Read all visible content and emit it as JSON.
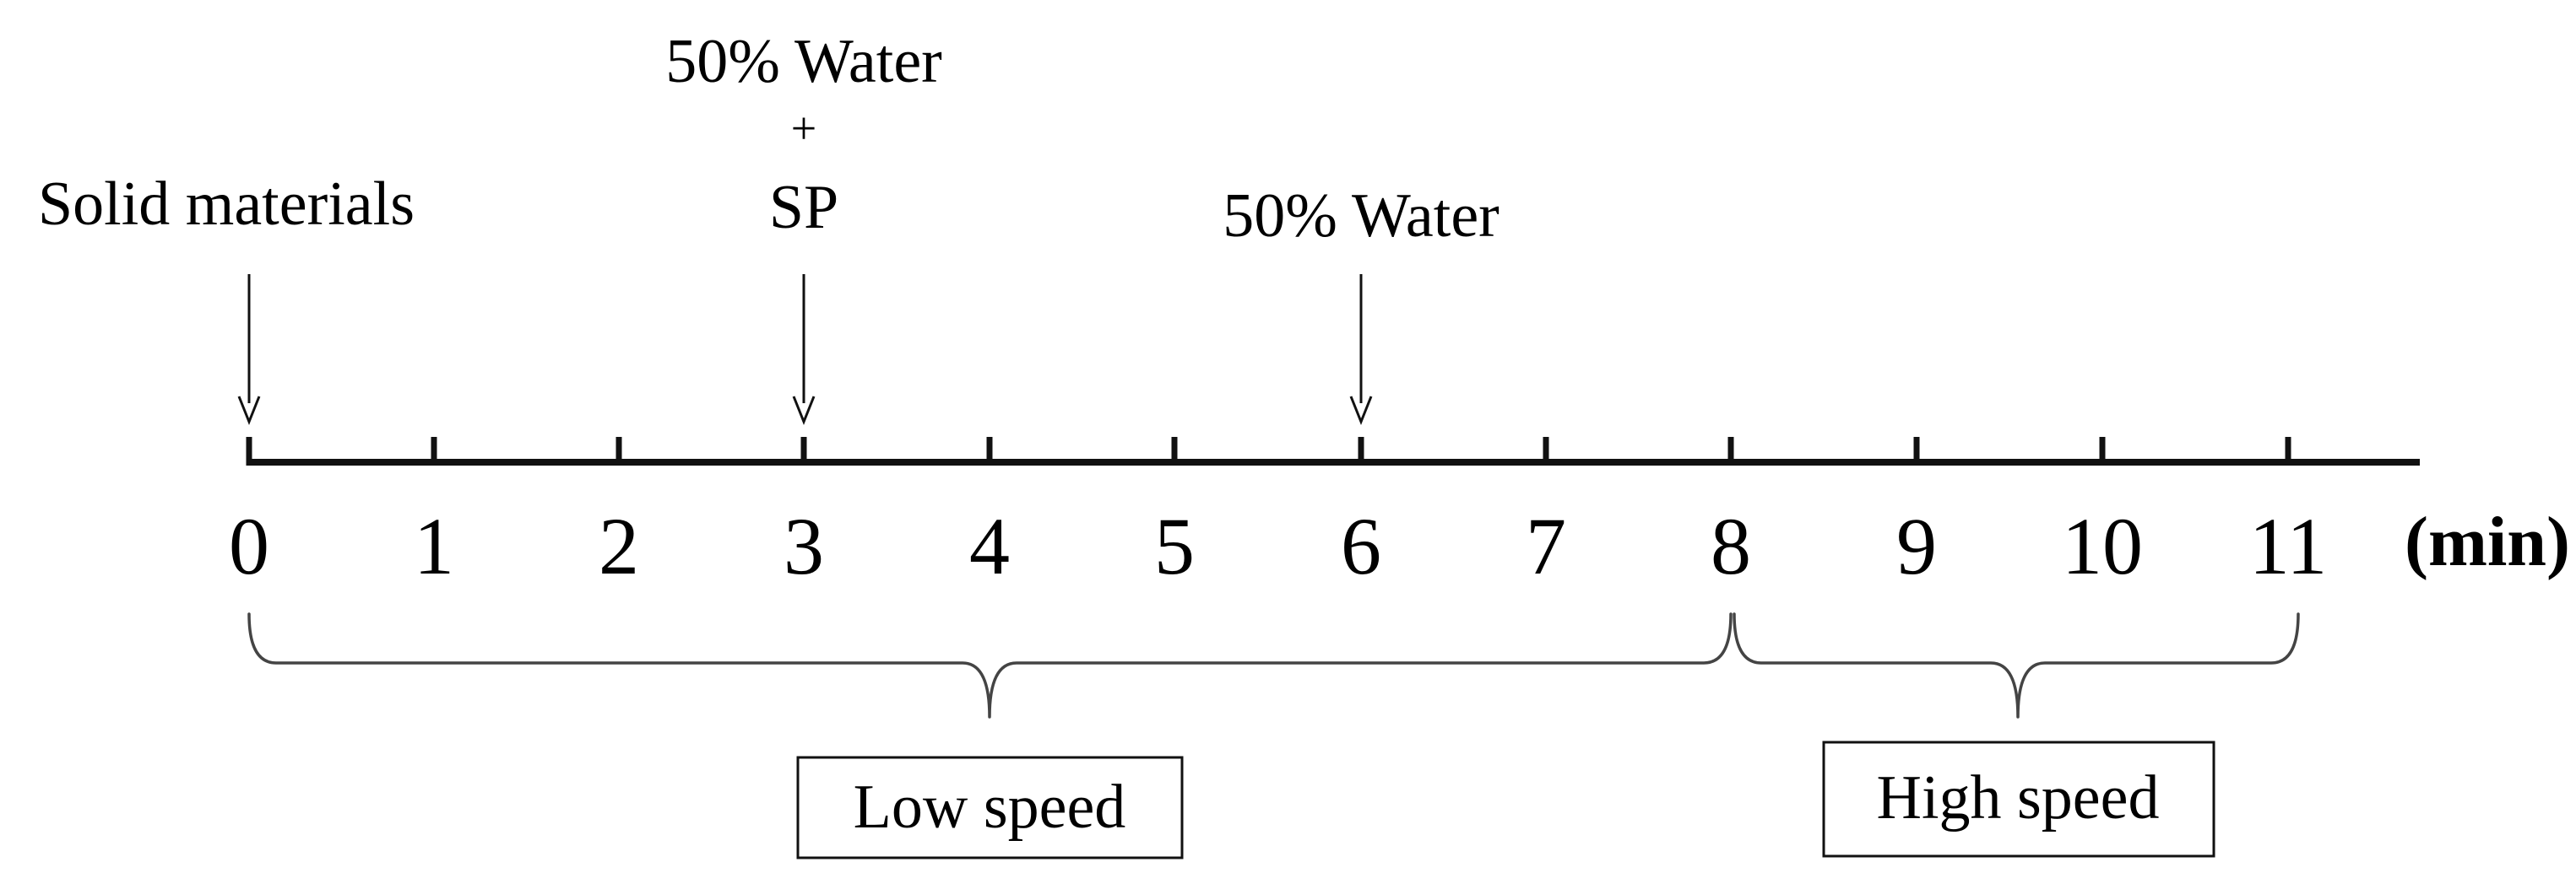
{
  "timeline": {
    "ticks": [
      "0",
      "1",
      "2",
      "3",
      "4",
      "5",
      "6",
      "7",
      "8",
      "9",
      "10",
      "11"
    ],
    "unit_label": "(min)"
  },
  "events": [
    {
      "time": 0,
      "lines": [
        "Solid materials"
      ]
    },
    {
      "time": 3,
      "lines": [
        "50% Water",
        "+",
        "SP"
      ]
    },
    {
      "time": 6,
      "lines": [
        "50% Water"
      ]
    }
  ],
  "phases": [
    {
      "start": 0,
      "end": 8,
      "label": "Low speed"
    },
    {
      "start": 8,
      "end": 11,
      "label": "High speed"
    }
  ]
}
